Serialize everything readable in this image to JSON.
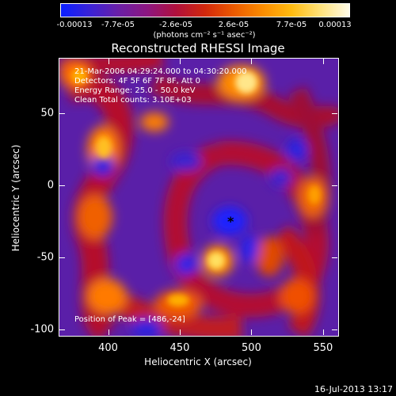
{
  "colorbar": {
    "ticks": [
      "-0.00013",
      "-7.7e-05",
      "-2.6e-05",
      "2.6e-05",
      "7.7e-05",
      "0.00013"
    ],
    "units": "(photons cm⁻² s⁻¹ asec⁻²)",
    "colors": [
      "#0a1fff",
      "#6a1fa6",
      "#b0103c",
      "#ec5a00",
      "#ffbb10",
      "#fffbe8"
    ]
  },
  "plot": {
    "title": "Reconstructed RHESSI Image",
    "annotations": [
      "21-Mar-2006 04:29:24.000 to 04:30:20.000",
      "Detectors: 4F 5F 6F 7F 8F, Att 0",
      "Energy Range: 25.0 - 50.0 keV",
      "Clean     Total counts: 3.10E+03"
    ],
    "peak_label": "Position of Peak = [486,-24]",
    "peak_marker": "*",
    "xlabel": "Heliocentric X (arcsec)",
    "ylabel": "Heliocentric Y (arcsec)",
    "xticks": [
      "400",
      "450",
      "500",
      "550"
    ],
    "yticks": [
      "50",
      "0",
      "-50",
      "-100"
    ]
  },
  "footer": {
    "date": "16-Jul-2013 13:17"
  },
  "chart_data": {
    "type": "heatmap",
    "title": "Reconstructed RHESSI Image",
    "xlabel": "Heliocentric X (arcsec)",
    "ylabel": "Heliocentric Y (arcsec)",
    "xlim": [
      366,
      560
    ],
    "ylim": [
      -104,
      88
    ],
    "colorbar_range": [
      -0.00013,
      0.00013
    ],
    "peak": [
      486,
      -24
    ]
  }
}
